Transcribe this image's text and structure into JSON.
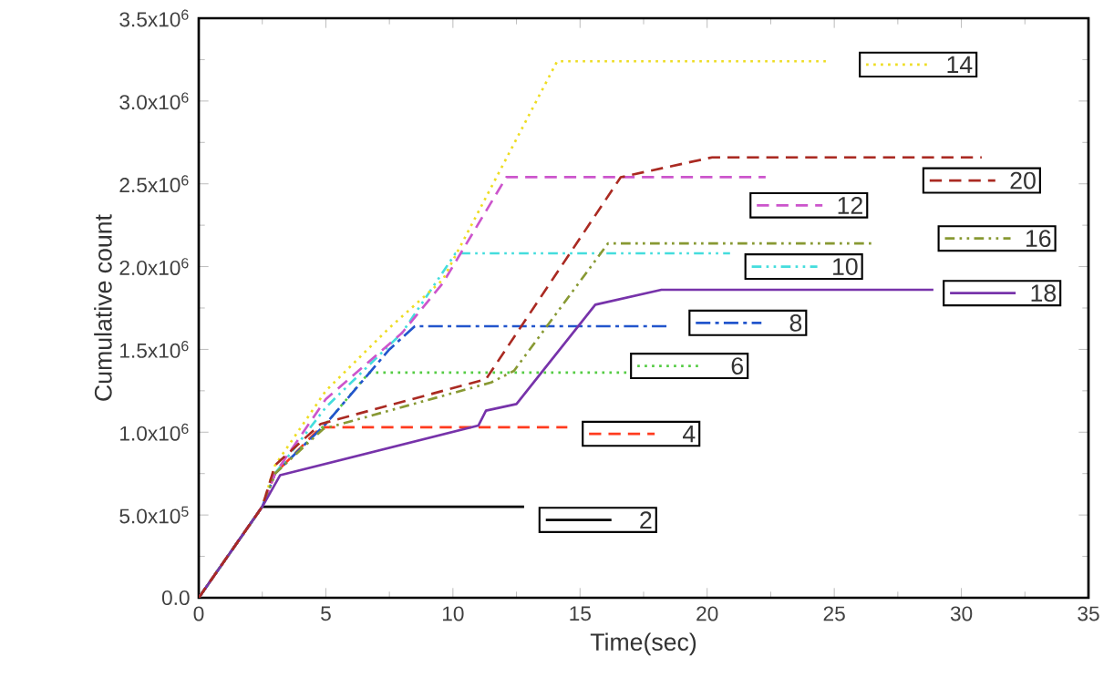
{
  "chart_data": {
    "type": "line",
    "xlabel": "Time(sec)",
    "ylabel": "Cumulative count",
    "xlim": [
      0,
      35
    ],
    "xticks": [
      0,
      5,
      10,
      15,
      20,
      25,
      30,
      35
    ],
    "ylim": [
      0,
      3500000
    ],
    "yticks": [
      {
        "value": 0,
        "label": "0.0"
      },
      {
        "value": 500000,
        "label": "5.0x10$^{5}$"
      },
      {
        "value": 1000000,
        "label": "1.0x10$^{6}$"
      },
      {
        "value": 1500000,
        "label": "1.5x10$^{6}$"
      },
      {
        "value": 2000000,
        "label": "2.0x10$^{6}$"
      },
      {
        "value": 2500000,
        "label": "2.5x10$^{6}$"
      },
      {
        "value": 3000000,
        "label": "3.0x10$^{6}$"
      },
      {
        "value": 3500000,
        "label": "3.5x10$^{6}$"
      }
    ],
    "grid": false,
    "marker": "none",
    "legend": "right",
    "series": [
      {
        "name": "2",
        "color": "#000000",
        "line_style": "solid",
        "x": [
          0,
          2.5,
          12.8
        ],
        "values": [
          0,
          550000,
          550000
        ]
      },
      {
        "name": "4",
        "color": "#ff3b1f",
        "line_style": "dashed",
        "x": [
          0,
          2.5,
          3,
          4.8,
          14.5
        ],
        "values": [
          0,
          550000,
          750000,
          1030000,
          1030000
        ]
      },
      {
        "name": "6",
        "color": "#55cc44",
        "line_style": "dotted",
        "x": [
          0,
          2.5,
          3,
          5,
          6.7,
          17
        ],
        "values": [
          0,
          550000,
          750000,
          1050000,
          1360000,
          1360000
        ]
      },
      {
        "name": "8",
        "color": "#2255cc",
        "line_style": "dashdot",
        "x": [
          0,
          2.5,
          3,
          5,
          7.5,
          8.5,
          18.5
        ],
        "values": [
          0,
          550000,
          750000,
          1050000,
          1500000,
          1640000,
          1640000
        ]
      },
      {
        "name": "10",
        "color": "#44dddd",
        "line_style": "dashdotdot",
        "x": [
          0,
          2.5,
          3,
          5,
          8,
          10.1,
          20.9
        ],
        "values": [
          0,
          550000,
          750000,
          1150000,
          1600000,
          2080000,
          2080000
        ]
      },
      {
        "name": "12",
        "color": "#cc55cc",
        "line_style": "dashed",
        "x": [
          0,
          2.5,
          3,
          5,
          8,
          9.6,
          12.1,
          22.3
        ],
        "values": [
          0,
          550000,
          750000,
          1200000,
          1600000,
          1900000,
          2540000,
          2540000
        ]
      },
      {
        "name": "14",
        "color": "#eedd22",
        "line_style": "dotted",
        "x": [
          0,
          2.5,
          3,
          5,
          7.5,
          9.6,
          14.1,
          24.8
        ],
        "values": [
          0,
          550000,
          800000,
          1250000,
          1630000,
          1920000,
          3240000,
          3240000
        ]
      },
      {
        "name": "16",
        "color": "#889933",
        "line_style": "dashdotdot",
        "x": [
          0,
          2.5,
          3,
          4.9,
          11.5,
          12.4,
          16.1,
          26.5
        ],
        "values": [
          0,
          550000,
          750000,
          1020000,
          1300000,
          1370000,
          2140000,
          2140000
        ]
      },
      {
        "name": "18",
        "color": "#7733aa",
        "line_style": "solid",
        "x": [
          0,
          2.5,
          3.2,
          11,
          11.3,
          12.5,
          15.6,
          18.2,
          28.9
        ],
        "values": [
          0,
          550000,
          740000,
          1040000,
          1130000,
          1170000,
          1770000,
          1860000,
          1860000
        ]
      },
      {
        "name": "20",
        "color": "#aa2a22",
        "line_style": "dashed",
        "x": [
          0,
          2.5,
          3,
          4.8,
          7.2,
          11.3,
          16.6,
          20.2,
          30.8
        ],
        "values": [
          0,
          550000,
          800000,
          1050000,
          1150000,
          1320000,
          2540000,
          2660000,
          2660000
        ]
      }
    ]
  }
}
